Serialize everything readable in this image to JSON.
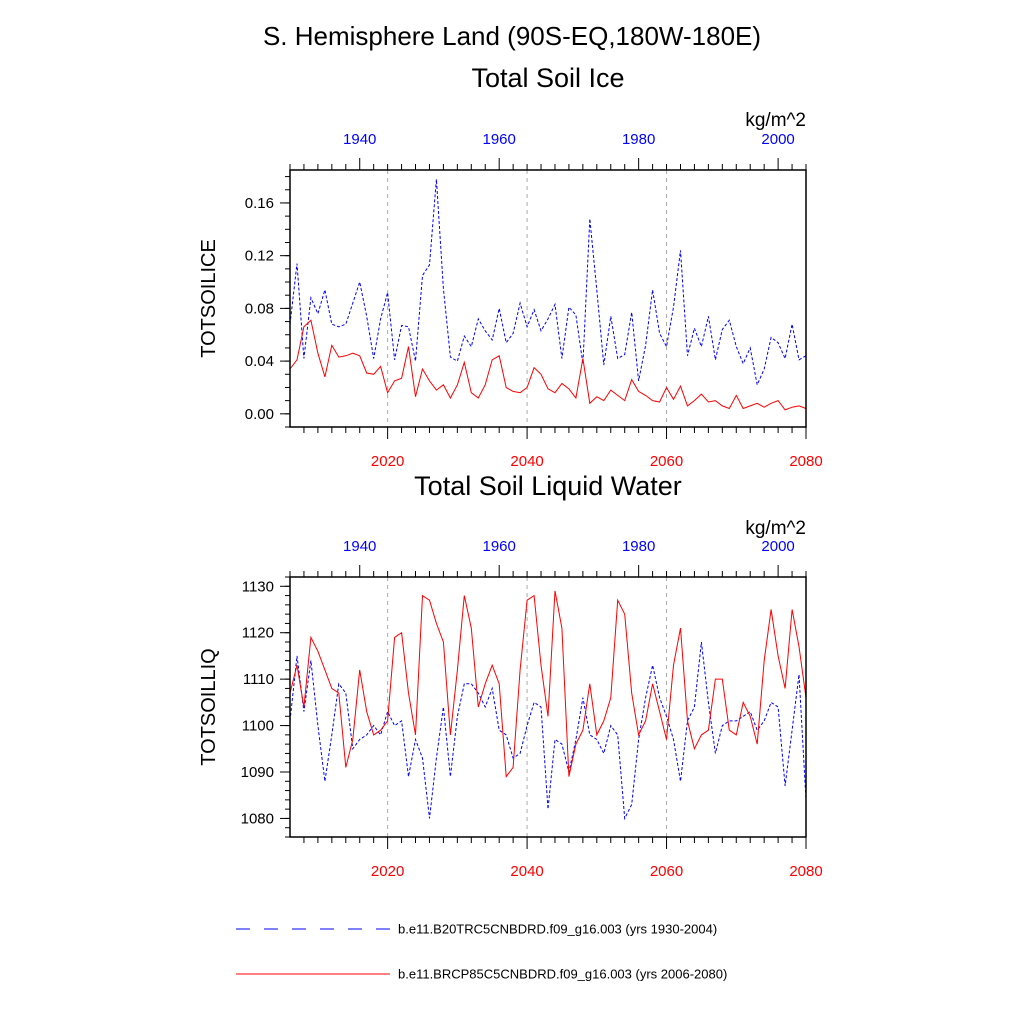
{
  "page_title": "S. Hemisphere Land (90S-EQ,180W-180E)",
  "colors": {
    "historical": "#0000ff",
    "future": "#ff0000",
    "axis": "#000000",
    "grid": "#aaaaaa"
  },
  "legend": [
    {
      "label": "b.e11.B20TRC5CNBDRD.f09_g16.003 (yrs 1930-2004)",
      "style": "dashed",
      "color": "#0000ff"
    },
    {
      "label": "b.e11.BRCP85C5CNBDRD.f09_g16.003 (yrs 2006-2080)",
      "style": "solid",
      "color": "#ff0000"
    }
  ],
  "chart_data": [
    {
      "type": "line",
      "title": "Total Soil Ice",
      "units": "kg/m^2",
      "ylabel": "TOTSOILICE",
      "ylim": [
        -0.01,
        0.185
      ],
      "yticks": [
        0.0,
        0.04,
        0.08,
        0.12,
        0.16
      ],
      "ytick_labels": [
        "0.00",
        "0.04",
        "0.08",
        "0.12",
        "0.16"
      ],
      "yminor_step": 0.01,
      "top_xaxis": {
        "range": [
          1930,
          2004
        ],
        "ticks": [
          1940,
          1960,
          1980,
          2000
        ],
        "color": "#0000ff"
      },
      "bottom_xaxis": {
        "range": [
          2006,
          2080
        ],
        "ticks": [
          2020,
          2040,
          2060,
          2080
        ],
        "color": "#ff0000"
      },
      "gridlines_x": [
        2020,
        2040,
        2060
      ],
      "series": [
        {
          "name": "b.e11.B20TRC5CNBDRD.f09_g16.003 (yrs 1930-2004)",
          "axis": "top",
          "style": "dashed",
          "color": "#0000ff",
          "x": [
            1930,
            1931,
            1932,
            1933,
            1934,
            1935,
            1936,
            1937,
            1938,
            1939,
            1940,
            1941,
            1942,
            1943,
            1944,
            1945,
            1946,
            1947,
            1948,
            1949,
            1950,
            1951,
            1952,
            1953,
            1954,
            1955,
            1956,
            1957,
            1958,
            1959,
            1960,
            1961,
            1962,
            1963,
            1964,
            1965,
            1966,
            1967,
            1968,
            1969,
            1970,
            1971,
            1972,
            1973,
            1974,
            1975,
            1976,
            1977,
            1978,
            1979,
            1980,
            1981,
            1982,
            1983,
            1984,
            1985,
            1986,
            1987,
            1988,
            1989,
            1990,
            1991,
            1992,
            1993,
            1994,
            1995,
            1996,
            1997,
            1998,
            1999,
            2000,
            2001,
            2002,
            2003,
            2004
          ],
          "values": [
            0.068,
            0.114,
            0.042,
            0.088,
            0.076,
            0.094,
            0.068,
            0.066,
            0.068,
            0.084,
            0.1,
            0.074,
            0.042,
            0.072,
            0.092,
            0.041,
            0.067,
            0.066,
            0.04,
            0.105,
            0.113,
            0.178,
            0.095,
            0.043,
            0.04,
            0.059,
            0.051,
            0.072,
            0.063,
            0.056,
            0.08,
            0.054,
            0.061,
            0.084,
            0.066,
            0.079,
            0.063,
            0.072,
            0.083,
            0.042,
            0.081,
            0.075,
            0.038,
            0.148,
            0.094,
            0.037,
            0.074,
            0.042,
            0.045,
            0.077,
            0.025,
            0.052,
            0.094,
            0.061,
            0.051,
            0.081,
            0.124,
            0.044,
            0.065,
            0.051,
            0.074,
            0.041,
            0.064,
            0.071,
            0.051,
            0.038,
            0.05,
            0.022,
            0.034,
            0.058,
            0.054,
            0.042,
            0.068,
            0.041,
            0.044
          ]
        },
        {
          "name": "b.e11.BRCP85C5CNBDRD.f09_g16.003 (yrs 2006-2080)",
          "axis": "bottom",
          "style": "solid",
          "color": "#ff0000",
          "x": [
            2006,
            2007,
            2008,
            2009,
            2010,
            2011,
            2012,
            2013,
            2014,
            2015,
            2016,
            2017,
            2018,
            2019,
            2020,
            2021,
            2022,
            2023,
            2024,
            2025,
            2026,
            2027,
            2028,
            2029,
            2030,
            2031,
            2032,
            2033,
            2034,
            2035,
            2036,
            2037,
            2038,
            2039,
            2040,
            2041,
            2042,
            2043,
            2044,
            2045,
            2046,
            2047,
            2048,
            2049,
            2050,
            2051,
            2052,
            2053,
            2054,
            2055,
            2056,
            2057,
            2058,
            2059,
            2060,
            2061,
            2062,
            2063,
            2064,
            2065,
            2066,
            2067,
            2068,
            2069,
            2070,
            2071,
            2072,
            2073,
            2074,
            2075,
            2076,
            2077,
            2078,
            2079,
            2080
          ],
          "values": [
            0.034,
            0.041,
            0.066,
            0.071,
            0.046,
            0.028,
            0.052,
            0.043,
            0.044,
            0.046,
            0.044,
            0.031,
            0.03,
            0.036,
            0.016,
            0.025,
            0.027,
            0.051,
            0.013,
            0.034,
            0.025,
            0.018,
            0.022,
            0.012,
            0.022,
            0.039,
            0.016,
            0.012,
            0.022,
            0.041,
            0.044,
            0.02,
            0.017,
            0.016,
            0.02,
            0.035,
            0.03,
            0.019,
            0.016,
            0.023,
            0.019,
            0.012,
            0.042,
            0.008,
            0.013,
            0.01,
            0.018,
            0.014,
            0.01,
            0.026,
            0.017,
            0.014,
            0.01,
            0.009,
            0.02,
            0.011,
            0.021,
            0.006,
            0.01,
            0.015,
            0.009,
            0.01,
            0.006,
            0.004,
            0.014,
            0.004,
            0.006,
            0.008,
            0.005,
            0.008,
            0.01,
            0.003,
            0.005,
            0.006,
            0.004
          ]
        }
      ]
    },
    {
      "type": "line",
      "title": "Total Soil Liquid Water",
      "units": "kg/m^2",
      "ylabel": "TOTSOILLIQ",
      "ylim": [
        1076,
        1132
      ],
      "yticks": [
        1080,
        1090,
        1100,
        1110,
        1120,
        1130
      ],
      "ytick_labels": [
        "1080",
        "1090",
        "1100",
        "1110",
        "1120",
        "1130"
      ],
      "yminor_step": 2,
      "top_xaxis": {
        "range": [
          1930,
          2004
        ],
        "ticks": [
          1940,
          1960,
          1980,
          2000
        ],
        "color": "#0000ff"
      },
      "bottom_xaxis": {
        "range": [
          2006,
          2080
        ],
        "ticks": [
          2020,
          2040,
          2060,
          2080
        ],
        "color": "#ff0000"
      },
      "gridlines_x": [
        2020,
        2040,
        2060
      ],
      "series": [
        {
          "name": "b.e11.B20TRC5CNBDRD.f09_g16.003 (yrs 1930-2004)",
          "axis": "top",
          "style": "dashed",
          "color": "#0000ff",
          "x": [
            1930,
            1931,
            1932,
            1933,
            1934,
            1935,
            1936,
            1937,
            1938,
            1939,
            1940,
            1941,
            1942,
            1943,
            1944,
            1945,
            1946,
            1947,
            1948,
            1949,
            1950,
            1951,
            1952,
            1953,
            1954,
            1955,
            1956,
            1957,
            1958,
            1959,
            1960,
            1961,
            1962,
            1963,
            1964,
            1965,
            1966,
            1967,
            1968,
            1969,
            1970,
            1971,
            1972,
            1973,
            1974,
            1975,
            1976,
            1977,
            1978,
            1979,
            1980,
            1981,
            1982,
            1983,
            1984,
            1985,
            1986,
            1987,
            1988,
            1989,
            1990,
            1991,
            1992,
            1993,
            1994,
            1995,
            1996,
            1997,
            1998,
            1999,
            2000,
            2001,
            2002,
            2003,
            2004
          ],
          "values": [
            1101,
            1115,
            1103,
            1114,
            1100,
            1088,
            1098,
            1109,
            1107,
            1095,
            1097,
            1098,
            1100,
            1098,
            1103,
            1100,
            1101,
            1089,
            1097,
            1093,
            1080,
            1093,
            1104,
            1089,
            1102,
            1109,
            1109,
            1107,
            1104,
            1108,
            1099,
            1098,
            1093,
            1094,
            1100,
            1105,
            1104,
            1082,
            1097,
            1096,
            1090,
            1097,
            1106,
            1098,
            1097,
            1094,
            1100,
            1098,
            1080,
            1083,
            1097,
            1106,
            1113,
            1106,
            1102,
            1097,
            1088,
            1101,
            1104,
            1118,
            1105,
            1094,
            1100,
            1101,
            1101,
            1102,
            1103,
            1099,
            1101,
            1105,
            1104,
            1087,
            1099,
            1111,
            1084
          ]
        },
        {
          "name": "b.e11.BRCP85C5CNBDRD.f09_g16.003 (yrs 2006-2080)",
          "axis": "bottom",
          "style": "solid",
          "color": "#ff0000",
          "x": [
            2006,
            2007,
            2008,
            2009,
            2010,
            2011,
            2012,
            2013,
            2014,
            2015,
            2016,
            2017,
            2018,
            2019,
            2020,
            2021,
            2022,
            2023,
            2024,
            2025,
            2026,
            2027,
            2028,
            2029,
            2030,
            2031,
            2032,
            2033,
            2034,
            2035,
            2036,
            2037,
            2038,
            2039,
            2040,
            2041,
            2042,
            2043,
            2044,
            2045,
            2046,
            2047,
            2048,
            2049,
            2050,
            2051,
            2052,
            2053,
            2054,
            2055,
            2056,
            2057,
            2058,
            2059,
            2060,
            2061,
            2062,
            2063,
            2064,
            2065,
            2066,
            2067,
            2068,
            2069,
            2070,
            2071,
            2072,
            2073,
            2074,
            2075,
            2076,
            2077,
            2078,
            2079,
            2080
          ],
          "values": [
            1107,
            1113,
            1104,
            1119,
            1116,
            1112,
            1108,
            1107,
            1091,
            1097,
            1112,
            1103,
            1098,
            1099,
            1101,
            1119,
            1120,
            1107,
            1098,
            1128,
            1127,
            1122,
            1118,
            1098,
            1112,
            1128,
            1121,
            1104,
            1109,
            1113,
            1109,
            1089,
            1091,
            1112,
            1127,
            1128,
            1113,
            1102,
            1129,
            1121,
            1089,
            1096,
            1099,
            1109,
            1098,
            1101,
            1106,
            1127,
            1124,
            1107,
            1098,
            1101,
            1109,
            1103,
            1097,
            1113,
            1121,
            1101,
            1095,
            1098,
            1099,
            1110,
            1110,
            1099,
            1098,
            1105,
            1102,
            1096,
            1114,
            1125,
            1115,
            1108,
            1125,
            1117,
            1106
          ]
        }
      ]
    }
  ]
}
